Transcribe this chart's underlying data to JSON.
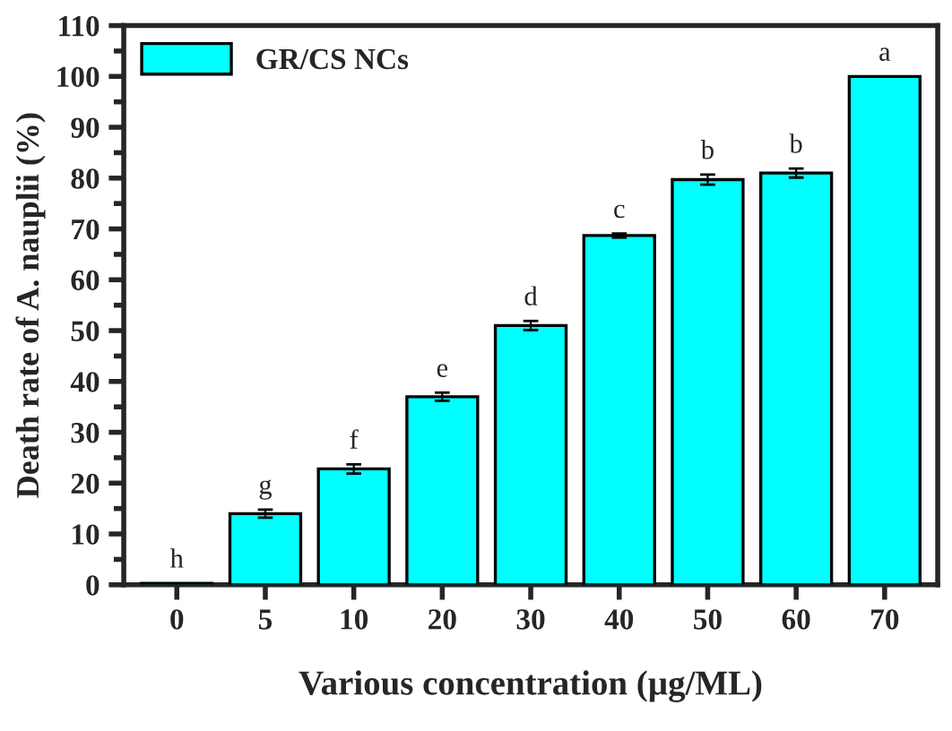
{
  "chart_data": {
    "type": "bar",
    "xlabel": "Various concentration (µg/ML)",
    "ylabel": "Death rate of A. nauplii (%)",
    "categories": [
      "0",
      "5",
      "10",
      "20",
      "30",
      "40",
      "50",
      "60",
      "70"
    ],
    "series": [
      {
        "name": "GR/CS NCs",
        "color": "#00ffff",
        "values": [
          0.3,
          14,
          22.8,
          37,
          51,
          68.7,
          79.7,
          81,
          100
        ],
        "errors": [
          null,
          0.8,
          0.9,
          0.8,
          0.9,
          0.4,
          1.0,
          0.9,
          null
        ]
      }
    ],
    "ylim": [
      0,
      110
    ],
    "yticks": [
      0,
      10,
      20,
      30,
      40,
      50,
      60,
      70,
      80,
      90,
      100,
      110
    ],
    "grid": false,
    "legend": "top left",
    "annotations": [
      {
        "text": "h",
        "x": "0",
        "y": 0.3
      },
      {
        "text": "g",
        "x": "5",
        "y": 14.8
      },
      {
        "text": "f",
        "x": "10",
        "y": 23.7
      },
      {
        "text": "e",
        "x": "20",
        "y": 37.8
      },
      {
        "text": "d",
        "x": "30",
        "y": 51.9
      },
      {
        "text": "c",
        "x": "40",
        "y": 69.1
      },
      {
        "text": "b",
        "x": "50",
        "y": 80.7
      },
      {
        "text": "b",
        "x": "60",
        "y": 81.9
      },
      {
        "text": "a",
        "x": "70",
        "y": 100
      }
    ]
  }
}
